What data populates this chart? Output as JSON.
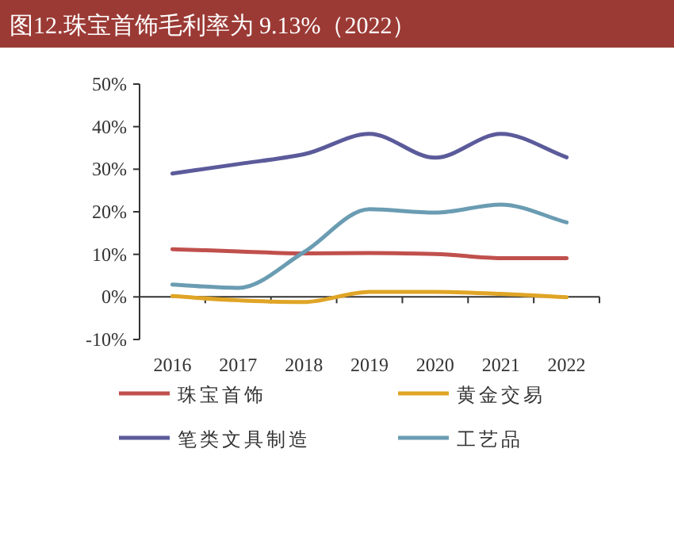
{
  "chart_data": {
    "type": "line",
    "title": "图12.珠宝首饰毛利率为 9.13%（2022）",
    "categories": [
      "2016",
      "2017",
      "2018",
      "2019",
      "2020",
      "2021",
      "2022"
    ],
    "series": [
      {
        "name": "珠宝首饰",
        "color": "#c0504d",
        "values": [
          11.2,
          10.7,
          10.2,
          10.3,
          10.1,
          9.1,
          9.1
        ]
      },
      {
        "name": "黄金交易",
        "color": "#e0a526",
        "values": [
          0.2,
          -0.8,
          -1.2,
          1.2,
          1.2,
          0.7,
          -0.1
        ]
      },
      {
        "name": "笔类文具制造",
        "color": "#5b5b9b",
        "values": [
          29.0,
          31.2,
          33.5,
          38.3,
          32.7,
          38.3,
          32.8
        ]
      },
      {
        "name": "工艺品",
        "color": "#6a9cb2",
        "values": [
          2.9,
          2.1,
          10.5,
          20.6,
          19.8,
          21.7,
          17.5
        ]
      }
    ],
    "ylim": [
      -10,
      50
    ],
    "yticks": [
      {
        "value": -10,
        "label": "-10%"
      },
      {
        "value": 0,
        "label": "0%"
      },
      {
        "value": 10,
        "label": "10%"
      },
      {
        "value": 20,
        "label": "20%"
      },
      {
        "value": 30,
        "label": "30%"
      },
      {
        "value": 40,
        "label": "40%"
      },
      {
        "value": 50,
        "label": "50%"
      }
    ],
    "legend": "bottom",
    "line_style": "solid",
    "marker": "none"
  }
}
